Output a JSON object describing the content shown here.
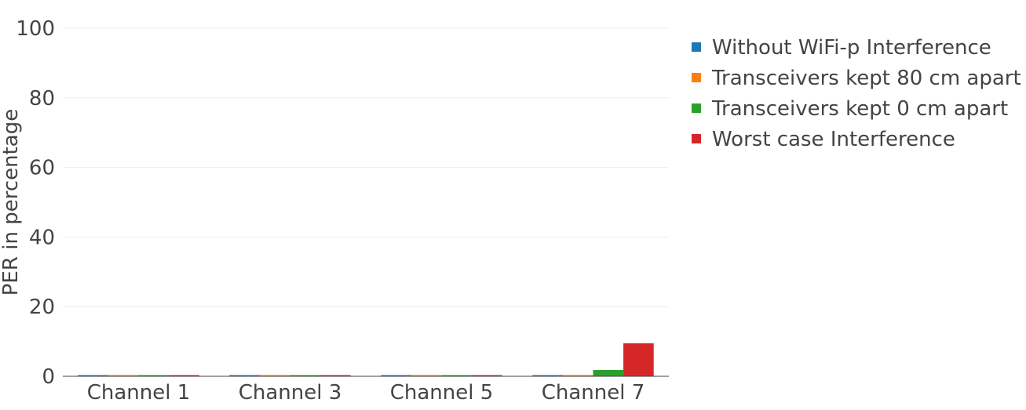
{
  "chart_data": {
    "type": "bar",
    "categories": [
      "Channel 1",
      "Channel 3",
      "Channel 5",
      "Channel 7"
    ],
    "series": [
      {
        "name": "Without WiFi-p Interference",
        "color": "#1f77b4",
        "values": [
          0.1,
          0.1,
          0.1,
          0.1
        ]
      },
      {
        "name": "Transceivers kept 80 cm apart",
        "color": "#ff7f0e",
        "values": [
          0.1,
          0.1,
          0.1,
          0.2
        ]
      },
      {
        "name": "Transceivers kept 0 cm apart",
        "color": "#2ca02c",
        "values": [
          0.1,
          0.1,
          0.1,
          1.8
        ]
      },
      {
        "name": "Worst case Interference",
        "color": "#d62728",
        "values": [
          0.1,
          0.1,
          0.1,
          9.5
        ]
      }
    ],
    "title": "",
    "xlabel": "",
    "ylabel": "PER in percentage",
    "ylim": [
      0,
      100
    ],
    "yticks": [
      0,
      20,
      40,
      60,
      80,
      100
    ],
    "grid": true,
    "legend_position": "top-right"
  }
}
